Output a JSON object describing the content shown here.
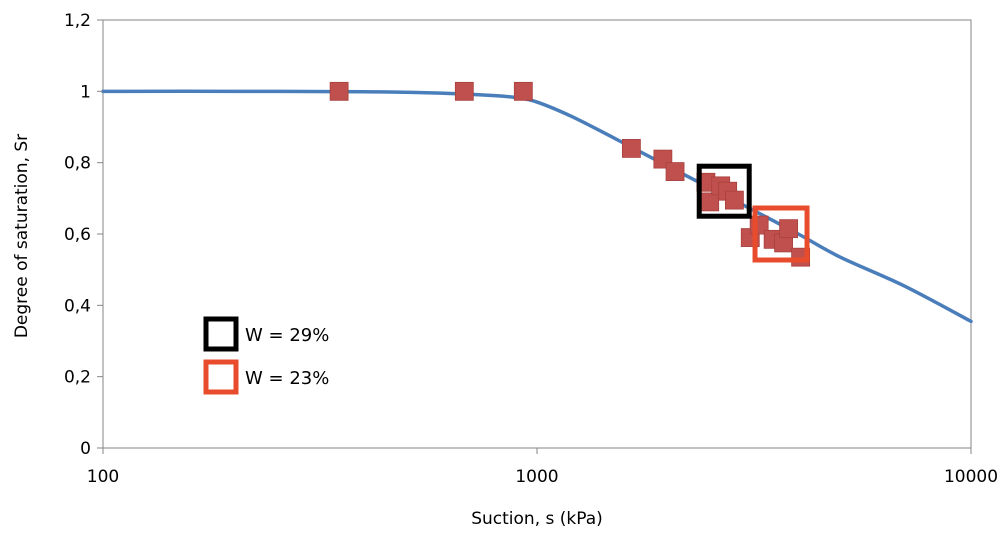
{
  "chart_data": {
    "type": "scatter",
    "title": "",
    "xlabel": "Suction, s (kPa)",
    "ylabel": "Degree of saturation, Sr",
    "xscale": "log",
    "xlim": [
      100,
      10000
    ],
    "ylim": [
      0,
      1.2
    ],
    "x_ticks": [
      100,
      1000,
      10000
    ],
    "x_tick_labels": [
      "100",
      "1000",
      "10000"
    ],
    "y_ticks": [
      0,
      0.2,
      0.4,
      0.6,
      0.8,
      1.0,
      1.2
    ],
    "y_tick_labels": [
      "0",
      "0,2",
      "0,4",
      "0,6",
      "0,8",
      "1",
      "1,2"
    ],
    "grid": false,
    "legend_position": "bottom-left",
    "series": [
      {
        "kind": "line",
        "color": "#4a7ebb",
        "x": [
          100,
          200,
          400,
          600,
          800,
          900,
          1000,
          1200,
          1500,
          2000,
          2500,
          3000,
          4000,
          5000,
          7000,
          10000
        ],
        "y": [
          1.0,
          1.0,
          0.999,
          0.995,
          0.988,
          0.982,
          0.97,
          0.93,
          0.87,
          0.79,
          0.73,
          0.68,
          0.6,
          0.535,
          0.455,
          0.355
        ]
      },
      {
        "kind": "markers",
        "color": "#c0504d",
        "x": [
          350,
          680,
          930,
          1650,
          1950,
          2080,
          2450,
          2500,
          2650,
          2750,
          2850,
          3100,
          3250,
          3500,
          3700,
          3800,
          4050
        ],
        "y": [
          1.0,
          1.0,
          1.0,
          0.84,
          0.81,
          0.775,
          0.745,
          0.69,
          0.735,
          0.72,
          0.695,
          0.59,
          0.625,
          0.585,
          0.575,
          0.615,
          0.535
        ]
      }
    ],
    "annotations": [
      {
        "shape": "square",
        "color": "#000000",
        "x_center": 2700,
        "y_center": 0.72
      },
      {
        "shape": "square",
        "color": "#e84c2c",
        "x_center": 3650,
        "y_center": 0.6
      }
    ],
    "legend": [
      {
        "label": "W = 29%",
        "color": "#000000"
      },
      {
        "label": "W = 23%",
        "color": "#e84c2c"
      }
    ]
  }
}
